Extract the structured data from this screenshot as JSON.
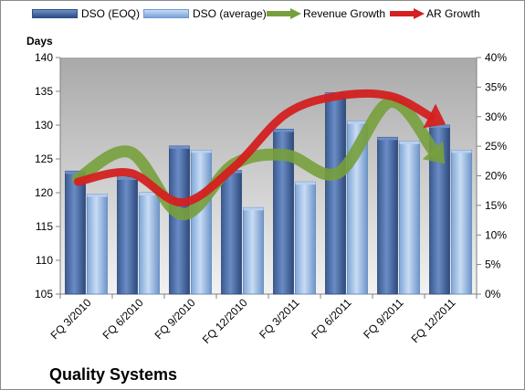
{
  "chart_data": {
    "type": "bar",
    "title": "Quality Systems",
    "ylabel_left": "Days",
    "categories": [
      "FQ 3/2010",
      "FQ 6/2010",
      "FQ 9/2010",
      "FQ 12/2010",
      "FQ 3/2011",
      "FQ 6/2011",
      "FQ 9/2011",
      "FQ 12/2011"
    ],
    "series": [
      {
        "name": "DSO (EOQ)",
        "type": "bar",
        "axis": "left",
        "color": "#4a6da7",
        "values": [
          123.2,
          122.3,
          126.9,
          123.3,
          129.4,
          134.8,
          128.2,
          130.0
        ]
      },
      {
        "name": "DSO (average)",
        "type": "bar",
        "axis": "left",
        "color": "#8eb4e3",
        "values": [
          119.8,
          120.0,
          126.3,
          117.8,
          121.6,
          130.6,
          127.6,
          126.3
        ]
      },
      {
        "name": "Revenue Growth",
        "type": "line",
        "axis": "right",
        "color": "#77a03c",
        "values": [
          0.195,
          0.24,
          0.135,
          0.22,
          0.235,
          0.205,
          0.325,
          0.225
        ]
      },
      {
        "name": "AR Growth",
        "type": "line",
        "axis": "right",
        "color": "#d42020",
        "values": [
          0.19,
          0.205,
          0.155,
          0.215,
          0.305,
          0.335,
          0.335,
          0.29
        ]
      }
    ],
    "ylim_left": [
      105,
      140
    ],
    "yticks_left": [
      105,
      110,
      115,
      120,
      125,
      130,
      135,
      140
    ],
    "ylim_right": [
      0,
      0.4
    ],
    "yticks_right": [
      "0%",
      "5%",
      "10%",
      "15%",
      "20%",
      "25%",
      "30%",
      "35%",
      "40%"
    ],
    "grid": false,
    "legend_position": "top"
  }
}
